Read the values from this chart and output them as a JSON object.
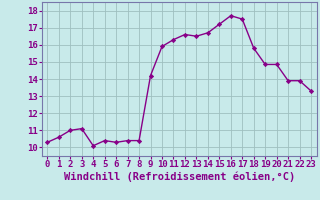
{
  "x": [
    0,
    1,
    2,
    3,
    4,
    5,
    6,
    7,
    8,
    9,
    10,
    11,
    12,
    13,
    14,
    15,
    16,
    17,
    18,
    19,
    20,
    21,
    22,
    23
  ],
  "y": [
    10.3,
    10.6,
    11.0,
    11.1,
    10.1,
    10.4,
    10.3,
    10.4,
    10.4,
    14.2,
    15.9,
    16.3,
    16.6,
    16.5,
    16.7,
    17.2,
    17.7,
    17.5,
    15.8,
    14.85,
    14.85,
    13.9,
    13.9,
    13.3
  ],
  "line_color": "#880088",
  "marker": "D",
  "marker_size": 2.2,
  "background_color": "#c8eaea",
  "grid_color": "#9fbfbf",
  "xlabel": "Windchill (Refroidissement éolien,°C)",
  "ylim": [
    9.5,
    18.5
  ],
  "xlim": [
    -0.5,
    23.5
  ],
  "yticks": [
    10,
    11,
    12,
    13,
    14,
    15,
    16,
    17,
    18
  ],
  "xticks": [
    0,
    1,
    2,
    3,
    4,
    5,
    6,
    7,
    8,
    9,
    10,
    11,
    12,
    13,
    14,
    15,
    16,
    17,
    18,
    19,
    20,
    21,
    22,
    23
  ],
  "tick_fontsize": 6.5,
  "xlabel_fontsize": 7.5,
  "label_color": "#880088",
  "spine_color": "#7777aa",
  "linewidth": 1.0
}
